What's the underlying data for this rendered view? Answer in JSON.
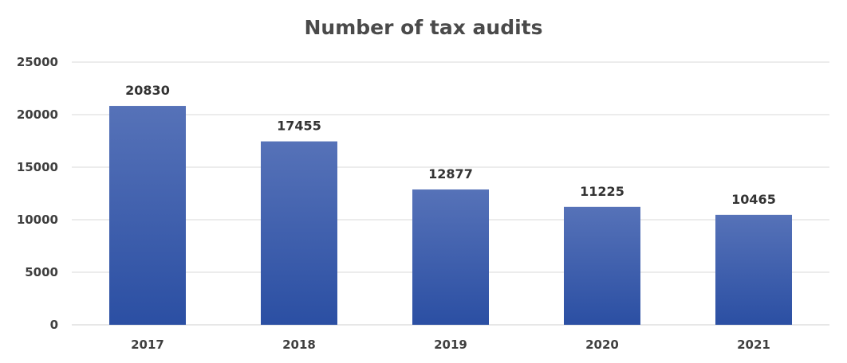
{
  "chart_data": {
    "type": "bar",
    "title": "Number of tax audits",
    "categories": [
      "2017",
      "2018",
      "2019",
      "2020",
      "2021"
    ],
    "values": [
      20830,
      17455,
      12877,
      11225,
      10465
    ],
    "xlabel": "",
    "ylabel": "",
    "ylim": [
      0,
      25000
    ],
    "yticks": [
      0,
      5000,
      10000,
      15000,
      20000,
      25000
    ],
    "grid": true,
    "legend": "none",
    "data_labels": true,
    "colors": {
      "bar_top": "#5672b8",
      "bar_bottom": "#2b4fa3",
      "gridline": "#d9d9d9",
      "axis": "#cfcfcf"
    }
  }
}
